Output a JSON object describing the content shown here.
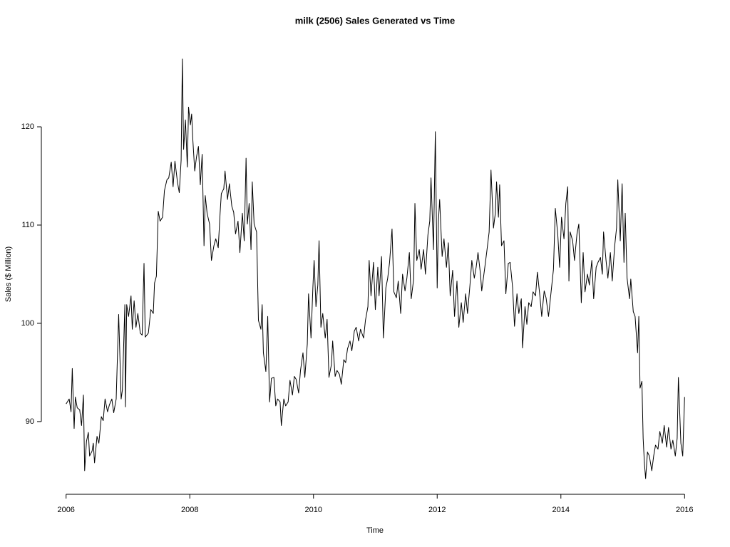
{
  "chart_data": {
    "type": "line",
    "title": "milk (2506) Sales Generated vs Time",
    "x_label": "Time",
    "y_label": "Sales ($ Million)",
    "color": "#000000",
    "xlim": [
      2005.6,
      2016.4
    ],
    "xticks": [
      2006,
      2008,
      2010,
      2012,
      2014,
      2016
    ],
    "ylim": [
      82.6,
      128.7
    ],
    "yticks": [
      90,
      100,
      110,
      120
    ],
    "x": [
      2006,
      2006.05,
      2006.08,
      2006.1,
      2006.13,
      2006.15,
      2006.18,
      2006.22,
      2006.25,
      2006.28,
      2006.3,
      2006.33,
      2006.36,
      2006.38,
      2006.42,
      2006.44,
      2006.46,
      2006.5,
      2006.53,
      2006.57,
      2006.6,
      2006.63,
      2006.67,
      2006.7,
      2006.74,
      2006.77,
      2006.81,
      2006.85,
      2006.89,
      2006.91,
      2006.95,
      2006.96,
      2006.98,
      2007.01,
      2007.05,
      2007.07,
      2007.1,
      2007.13,
      2007.16,
      2007.2,
      2007.23,
      2007.26,
      2007.28,
      2007.33,
      2007.37,
      2007.41,
      2007.43,
      2007.46,
      2007.49,
      2007.52,
      2007.56,
      2007.59,
      2007.63,
      2007.66,
      2007.7,
      2007.73,
      2007.76,
      2007.8,
      2007.83,
      2007.86,
      2007.88,
      2007.9,
      2007.93,
      2007.96,
      2007.98,
      2008.01,
      2008.03,
      2008.05,
      2008.08,
      2008.11,
      2008.14,
      2008.17,
      2008.2,
      2008.23,
      2008.25,
      2008.28,
      2008.32,
      2008.35,
      2008.39,
      2008.42,
      2008.46,
      2008.49,
      2008.51,
      2008.55,
      2008.57,
      2008.61,
      2008.64,
      2008.68,
      2008.71,
      2008.74,
      2008.78,
      2008.81,
      2008.85,
      2008.88,
      2008.91,
      2008.93,
      2008.96,
      2008.99,
      2009.01,
      2009.04,
      2009.08,
      2009.11,
      2009.15,
      2009.17,
      2009.19,
      2009.23,
      2009.26,
      2009.29,
      2009.32,
      2009.36,
      2009.39,
      2009.42,
      2009.46,
      2009.48,
      2009.52,
      2009.55,
      2009.59,
      2009.62,
      2009.66,
      2009.69,
      2009.72,
      2009.76,
      2009.79,
      2009.83,
      2009.86,
      2009.9,
      2009.92,
      2009.96,
      2009.99,
      2010.01,
      2010.04,
      2010.07,
      2010.09,
      2010.12,
      2010.15,
      2010.19,
      2010.22,
      2010.25,
      2010.29,
      2010.31,
      2010.35,
      2010.38,
      2010.42,
      2010.45,
      2010.49,
      2010.52,
      2010.55,
      2010.59,
      2010.62,
      2010.66,
      2010.69,
      2010.73,
      2010.76,
      2010.81,
      2010.84,
      2010.88,
      2010.9,
      2010.93,
      2010.97,
      2011,
      2011.04,
      2011.06,
      2011.1,
      2011.13,
      2011.17,
      2011.2,
      2011.23,
      2011.27,
      2011.3,
      2011.34,
      2011.37,
      2011.41,
      2011.44,
      2011.48,
      2011.51,
      2011.55,
      2011.58,
      2011.62,
      2011.64,
      2011.67,
      2011.71,
      2011.74,
      2011.78,
      2011.81,
      2011.85,
      2011.88,
      2011.9,
      2011.94,
      2011.97,
      2012,
      2012.02,
      2012.04,
      2012.08,
      2012.11,
      2012.15,
      2012.18,
      2012.21,
      2012.25,
      2012.28,
      2012.32,
      2012.35,
      2012.39,
      2012.42,
      2012.46,
      2012.49,
      2012.53,
      2012.56,
      2012.6,
      2012.63,
      2012.66,
      2012.7,
      2012.72,
      2012.77,
      2012.8,
      2012.84,
      2012.87,
      2012.91,
      2012.94,
      2012.96,
      2012.99,
      2013.01,
      2013.04,
      2013.08,
      2013.11,
      2013.15,
      2013.18,
      2013.22,
      2013.25,
      2013.29,
      2013.32,
      2013.36,
      2013.38,
      2013.42,
      2013.45,
      2013.48,
      2013.52,
      2013.55,
      2013.59,
      2013.62,
      2013.66,
      2013.69,
      2013.73,
      2013.76,
      2013.8,
      2013.83,
      2013.88,
      2013.91,
      2013.95,
      2013.98,
      2014.01,
      2014.05,
      2014.08,
      2014.11,
      2014.13,
      2014.15,
      2014.19,
      2014.22,
      2014.26,
      2014.29,
      2014.33,
      2014.36,
      2014.39,
      2014.43,
      2014.46,
      2014.5,
      2014.53,
      2014.57,
      2014.6,
      2014.64,
      2014.67,
      2014.69,
      2014.73,
      2014.76,
      2014.8,
      2014.83,
      2014.87,
      2014.9,
      2014.92,
      2014.96,
      2014.99,
      2015.02,
      2015.04,
      2015.07,
      2015.11,
      2015.13,
      2015.17,
      2015.2,
      2015.24,
      2015.26,
      2015.28,
      2015.31,
      2015.33,
      2015.35,
      2015.37,
      2015.4,
      2015.43,
      2015.47,
      2015.5,
      2015.53,
      2015.57,
      2015.6,
      2015.64,
      2015.67,
      2015.71,
      2015.74,
      2015.78,
      2015.81,
      2015.85,
      2015.88,
      2015.9,
      2015.94,
      2015.97,
      2016
    ],
    "values": [
      91.8,
      92.3,
      91,
      95.4,
      89.3,
      92.5,
      91.4,
      91.2,
      89.6,
      92.7,
      85,
      88,
      88.9,
      86.5,
      87,
      87.8,
      85.8,
      88.5,
      87.8,
      90.5,
      90.1,
      92.3,
      91,
      91.7,
      92.3,
      90.9,
      92.3,
      100.9,
      92.3,
      93.2,
      101.9,
      91.5,
      101.9,
      100.7,
      102.8,
      99.4,
      102.3,
      99.6,
      101,
      99,
      98.8,
      106.1,
      98.6,
      99,
      101.4,
      101,
      104.1,
      104.8,
      111.4,
      110.4,
      110.8,
      113.5,
      114.6,
      114.8,
      116.4,
      113.9,
      116.5,
      114.4,
      113.3,
      116.6,
      126.9,
      117.7,
      120.7,
      115.9,
      122,
      120.2,
      121.3,
      118.6,
      115.5,
      117,
      118,
      114.1,
      117.2,
      107.9,
      113,
      111.2,
      110.1,
      106.4,
      107.9,
      108.6,
      107.7,
      111.2,
      113.2,
      113.7,
      115.5,
      112.6,
      114.2,
      111.9,
      111.3,
      109.1,
      110.4,
      107.2,
      111.2,
      108.4,
      116.8,
      110.1,
      112.2,
      107.5,
      114.4,
      110.1,
      109.3,
      100.3,
      99.4,
      101.9,
      97,
      95.1,
      100.7,
      92,
      94.4,
      94.5,
      91.6,
      92.3,
      92,
      89.6,
      92.3,
      91.6,
      92,
      94.2,
      92.7,
      94.6,
      94.3,
      92.9,
      95.2,
      97,
      94.5,
      97.9,
      103,
      98.5,
      103.6,
      106.4,
      101.7,
      103.9,
      108.4,
      99.6,
      101,
      98.5,
      100.4,
      94.5,
      95.8,
      98.2,
      94.6,
      95.2,
      94.8,
      93.8,
      96.3,
      96,
      97.4,
      98.2,
      97.2,
      99.2,
      99.6,
      98.2,
      99.4,
      98.5,
      100.3,
      101.7,
      106.4,
      102.8,
      106.2,
      101.4,
      105.7,
      102.8,
      106.8,
      98.5,
      103.6,
      104.6,
      106.2,
      109.6,
      103.2,
      102.6,
      104.3,
      101,
      105,
      103.3,
      104.6,
      107.2,
      102.5,
      104.5,
      112.2,
      106.4,
      107.5,
      105.5,
      107.5,
      105,
      109,
      110.4,
      114.8,
      107.5,
      119.5,
      103.6,
      110.4,
      112.6,
      106.8,
      108.6,
      105.7,
      108.2,
      102.8,
      105.4,
      100.7,
      104.3,
      99.6,
      102.1,
      100.1,
      103,
      101,
      103.9,
      106.4,
      104.6,
      105.7,
      107.2,
      105,
      103.3,
      105.7,
      107.2,
      109.3,
      115.6,
      109.7,
      111.2,
      114.4,
      110.8,
      114.1,
      107.9,
      108.4,
      103,
      106.1,
      106.2,
      103.6,
      99.7,
      103,
      101,
      102.5,
      97.5,
      101.7,
      99.9,
      102.1,
      101.7,
      103.2,
      102.8,
      105.2,
      102.8,
      100.7,
      103.3,
      102.6,
      100.7,
      102.5,
      105.5,
      111.7,
      109,
      105.7,
      110.8,
      108.6,
      112.2,
      113.9,
      104.3,
      109.3,
      108.4,
      106.4,
      109.1,
      110.1,
      102.1,
      107.2,
      103.2,
      105,
      103.9,
      106.4,
      102.5,
      105.7,
      106.2,
      106.7,
      105,
      109.3,
      106.4,
      104.6,
      107.2,
      104.3,
      107.9,
      109.7,
      114.6,
      108.4,
      114.2,
      106.2,
      111.2,
      104.6,
      102.5,
      104.5,
      101.2,
      100.7,
      97,
      100.7,
      93.4,
      94.1,
      88.3,
      85.8,
      84.2,
      86.9,
      86.5,
      85,
      86.5,
      87.6,
      87.2,
      89,
      87.8,
      89.6,
      87.4,
      89.4,
      87.2,
      88.1,
      86.5,
      88.3,
      94.5,
      87.8,
      86.5,
      92.5
    ]
  }
}
